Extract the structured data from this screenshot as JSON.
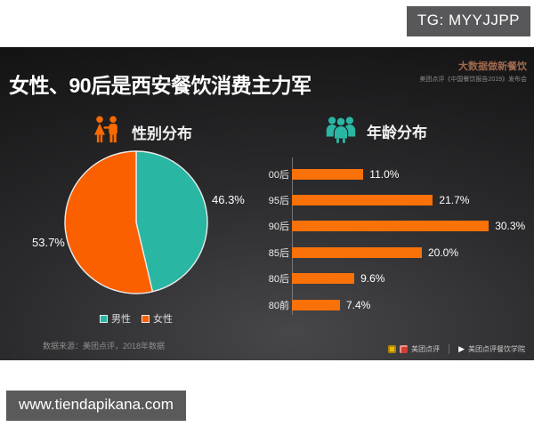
{
  "page": {
    "watermark_top": "TG: MYYJJPP",
    "watermark_bottom": "www.tiendapikana.com"
  },
  "slide": {
    "title": "女性、90后是西安餐饮消费主力军",
    "corner_tagline": "大数据做新餐饮",
    "corner_subtitle": "美团点评《中国餐饮报告2019》发布会",
    "source_note": "数据来源：美团点评，2018年数据",
    "footer": {
      "brand_left": "美团点评",
      "brand_right": "美团点评餐饮学院"
    }
  },
  "colors": {
    "teal_accent": "#2ab6a3",
    "orange_accent": "#f86a00",
    "pie_male_teal": "#29b6a3",
    "pie_female_orange": "#fa5f00",
    "bar_orange": "#f87109",
    "watermark_bg": "#58585a",
    "slide_bg_dark": "#121213"
  },
  "chart_data": [
    {
      "type": "pie",
      "title": "性别分布",
      "labels": [
        "男性",
        "女性"
      ],
      "values": [
        46.3,
        53.7
      ],
      "data_labels": [
        "46.3%",
        "53.7%"
      ],
      "colors": [
        "#29b6a3",
        "#fa5f00"
      ],
      "start_angle_deg": 0,
      "direction": "clockwise",
      "legend_position": "bottom"
    },
    {
      "type": "bar",
      "title": "年龄分布",
      "orientation": "horizontal",
      "categories": [
        "00后",
        "95后",
        "90后",
        "85后",
        "80后",
        "80前"
      ],
      "values": [
        11.0,
        21.7,
        30.3,
        20.0,
        9.6,
        7.4
      ],
      "data_labels": [
        "11.0%",
        "21.7%",
        "30.3%",
        "20.0%",
        "9.6%",
        "7.4%"
      ],
      "bar_color": "#f87109",
      "xlim": [
        0,
        31
      ],
      "grid": false
    }
  ]
}
